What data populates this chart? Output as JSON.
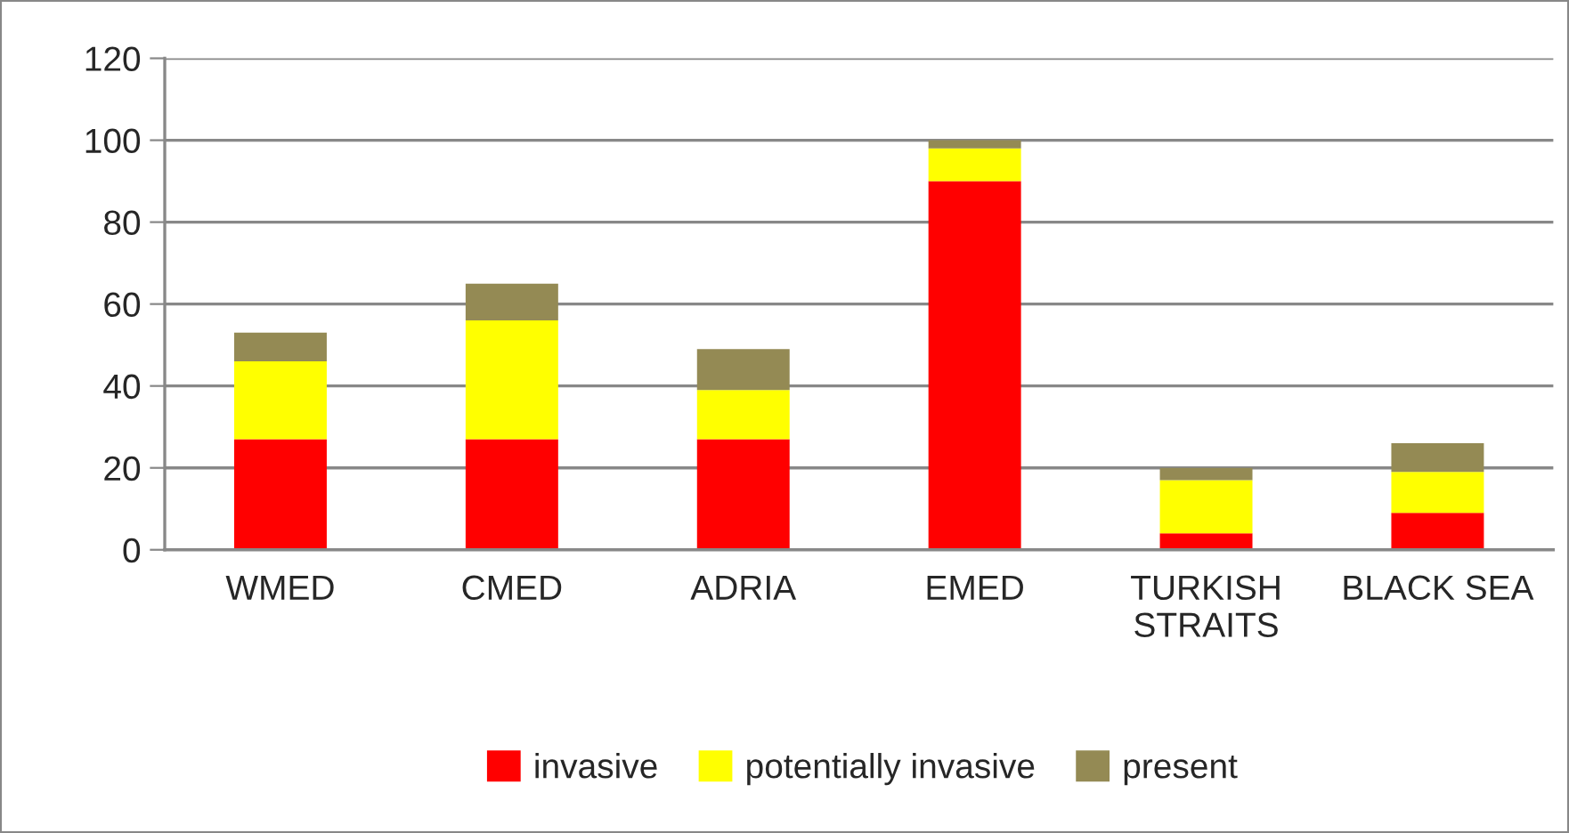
{
  "chart_data": {
    "type": "bar",
    "stacked": true,
    "categories": [
      "WMED",
      "CMED",
      "ADRIA",
      "EMED",
      "TURKISH\nSTRAITS",
      "BLACK SEA"
    ],
    "series": [
      {
        "name": "invasive",
        "color": "#ff0000",
        "values": [
          27,
          27,
          27,
          90,
          4,
          9
        ]
      },
      {
        "name": "potentially invasive",
        "color": "#ffff00",
        "values": [
          19,
          29,
          12,
          8,
          13,
          10
        ]
      },
      {
        "name": "present",
        "color": "#948a54",
        "values": [
          7,
          9,
          10,
          2,
          3,
          7
        ]
      }
    ],
    "ylim": [
      0,
      120
    ],
    "yticks": [
      0,
      20,
      40,
      60,
      80,
      100,
      120
    ],
    "grid": "y",
    "legend": "bottom"
  }
}
